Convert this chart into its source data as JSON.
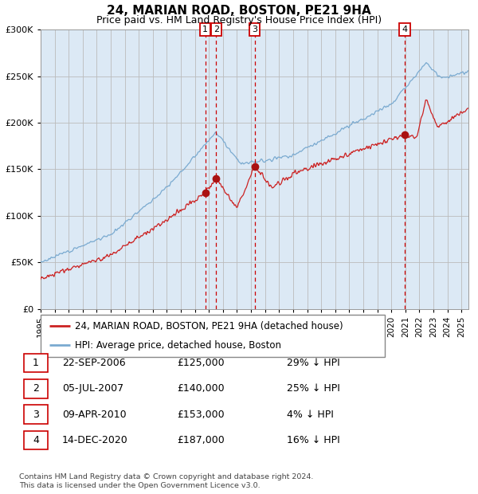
{
  "title": "24, MARIAN ROAD, BOSTON, PE21 9HA",
  "subtitle": "Price paid vs. HM Land Registry's House Price Index (HPI)",
  "legend_property": "24, MARIAN ROAD, BOSTON, PE21 9HA (detached house)",
  "legend_hpi": "HPI: Average price, detached house, Boston",
  "footer1": "Contains HM Land Registry data © Crown copyright and database right 2024.",
  "footer2": "This data is licensed under the Open Government Licence v3.0.",
  "sales": [
    {
      "num": 1,
      "date": "22-SEP-2006",
      "date_x": 2006.73,
      "price": 125000,
      "label": "£125,000",
      "pct": "29% ↓ HPI"
    },
    {
      "num": 2,
      "date": "05-JUL-2007",
      "date_x": 2007.51,
      "price": 140000,
      "label": "£140,000",
      "pct": "25% ↓ HPI"
    },
    {
      "num": 3,
      "date": "09-APR-2010",
      "date_x": 2010.27,
      "price": 153000,
      "label": "£153,000",
      "pct": "4% ↓ HPI"
    },
    {
      "num": 4,
      "date": "14-DEC-2020",
      "date_x": 2020.95,
      "price": 187000,
      "label": "£187,000",
      "pct": "16% ↓ HPI"
    }
  ],
  "x_start": 1995.0,
  "x_end": 2025.5,
  "y_min": 0,
  "y_max": 300000,
  "bg_color": "#ffffff",
  "chart_bg": "#dce9f5",
  "grid_color": "#bbbbbb",
  "hpi_color": "#7aaad0",
  "property_color": "#cc2222",
  "vline_color": "#cc0000",
  "marker_color": "#aa1111",
  "box_color": "#cc0000",
  "yticks": [
    0,
    50000,
    100000,
    150000,
    200000,
    250000,
    300000
  ],
  "xticks": [
    1995,
    1996,
    1997,
    1998,
    1999,
    2000,
    2001,
    2002,
    2003,
    2004,
    2005,
    2006,
    2007,
    2008,
    2009,
    2010,
    2011,
    2012,
    2013,
    2014,
    2015,
    2016,
    2017,
    2018,
    2019,
    2020,
    2021,
    2022,
    2023,
    2024,
    2025
  ]
}
